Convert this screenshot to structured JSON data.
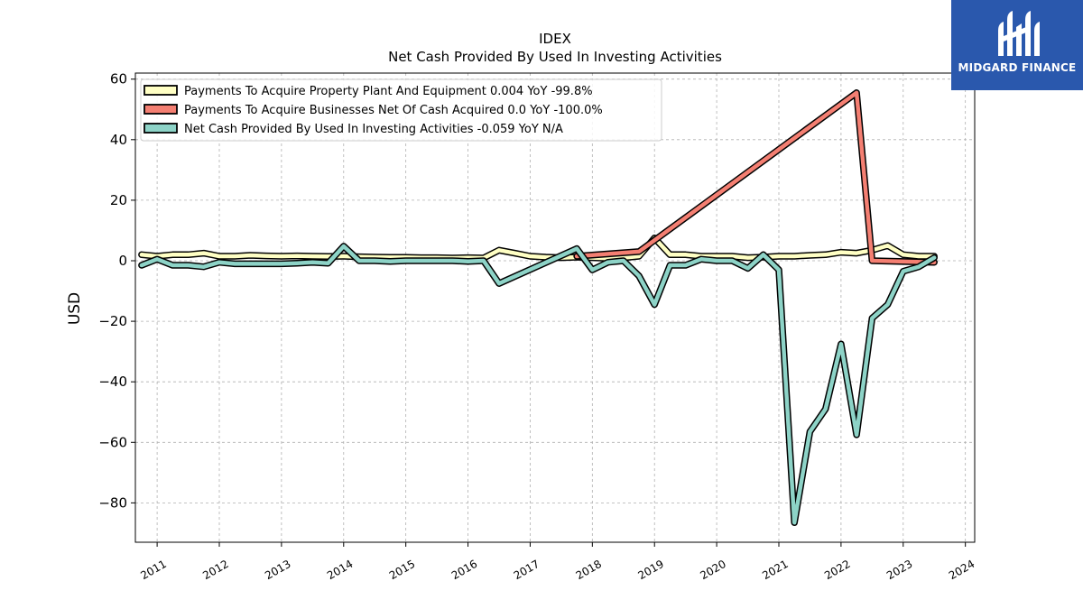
{
  "brand": {
    "name": "MIDGARD FINANCE",
    "color": "#2a58ad"
  },
  "chart_data": {
    "type": "line",
    "title": "IDEX",
    "subtitle": "Net Cash Provided By Used In Investing Activities",
    "ylabel": "USD",
    "xlabel": "",
    "xlim": [
      2010.65,
      2024.15
    ],
    "ylim": [
      -93,
      62
    ],
    "yticks": [
      60,
      40,
      20,
      0,
      -20,
      -40,
      -60,
      -80
    ],
    "xticks": [
      "2011",
      "2012",
      "2013",
      "2014",
      "2015",
      "2016",
      "2017",
      "2018",
      "2019",
      "2020",
      "2021",
      "2022",
      "2023",
      "2024"
    ],
    "grid": true,
    "legend_position": "top-left",
    "series": [
      {
        "name": "Payments To Acquire Property Plant And Equipment",
        "legend_label": "Payments To Acquire Property Plant And Equipment  0.004 YoY -99.8%",
        "color": "#ffffc4",
        "x": [
          2010.75,
          2011.0,
          2011.25,
          2011.5,
          2011.75,
          2012.0,
          2012.25,
          2012.5,
          2012.75,
          2013.0,
          2013.25,
          2013.5,
          2013.75,
          2014.0,
          2014.25,
          2014.5,
          2014.75,
          2015.0,
          2015.25,
          2015.5,
          2015.75,
          2016.0,
          2016.25,
          2016.5,
          2016.75,
          2017.0,
          2017.25,
          2017.5,
          2017.75,
          2018.0,
          2018.25,
          2018.5,
          2018.75,
          2019.0,
          2019.25,
          2019.5,
          2019.75,
          2020.0,
          2020.25,
          2020.5,
          2020.75,
          2021.0,
          2021.25,
          2021.5,
          2021.75,
          2022.0,
          2022.25,
          2022.5,
          2022.75,
          2023.0,
          2023.25,
          2023.5
        ],
        "values": [
          2.0,
          1.5,
          2.0,
          2.0,
          2.5,
          1.5,
          1.5,
          1.8,
          1.6,
          1.5,
          1.6,
          1.5,
          1.4,
          1.5,
          1.3,
          1.2,
          1.1,
          1.1,
          1.0,
          1.0,
          0.9,
          1.0,
          0.9,
          3.5,
          2.5,
          1.5,
          1.2,
          1.0,
          1.2,
          1.0,
          0.8,
          1.0,
          1.5,
          7.5,
          2.0,
          2.0,
          1.5,
          1.5,
          1.5,
          1.0,
          1.2,
          1.5,
          1.5,
          1.8,
          2.0,
          2.8,
          2.5,
          3.5,
          5.0,
          2.0,
          1.5,
          1.5
        ]
      },
      {
        "name": "Payments To Acquire Businesses Net Of Cash Acquired",
        "legend_label": "Payments To Acquire Businesses Net Of Cash Acquired  0.0 YoY -100.0%",
        "color": "#f47f72",
        "x": [
          2017.75,
          2018.75,
          2022.25,
          2022.5,
          2023.5
        ],
        "values": [
          1.5,
          3.0,
          55.5,
          0.0,
          -0.5
        ]
      },
      {
        "name": "Net Cash Provided By Used In Investing Activities",
        "legend_label": "Net Cash Provided By Used In Investing Activities  -0.059 YoY N/A",
        "color": "#8dd3c7",
        "x": [
          2010.75,
          2011.0,
          2011.25,
          2011.5,
          2011.75,
          2012.0,
          2012.25,
          2012.5,
          2012.75,
          2013.0,
          2013.25,
          2013.5,
          2013.75,
          2014.0,
          2014.25,
          2014.5,
          2014.75,
          2015.0,
          2015.25,
          2015.5,
          2015.75,
          2016.0,
          2016.25,
          2016.5,
          2017.75,
          2018.0,
          2018.25,
          2018.5,
          2018.75,
          2019.0,
          2019.25,
          2019.5,
          2019.75,
          2020.0,
          2020.25,
          2020.5,
          2020.75,
          2021.0,
          2021.25,
          2021.5,
          2021.75,
          2022.0,
          2022.25,
          2022.5,
          2022.75,
          2023.0,
          2023.25,
          2023.5
        ],
        "values": [
          -1.5,
          0.5,
          -1.5,
          -1.5,
          -2.0,
          -0.5,
          -1.0,
          -1.0,
          -1.0,
          -1.0,
          -0.8,
          -0.5,
          -0.8,
          4.8,
          0.0,
          0.0,
          -0.2,
          0.0,
          0.0,
          0.0,
          0.0,
          -0.2,
          0.0,
          -7.5,
          4.0,
          -3.0,
          -0.5,
          0.0,
          -5.0,
          -14.5,
          -1.5,
          -1.5,
          0.5,
          0.0,
          0.0,
          -2.5,
          2.0,
          -3.0,
          -86.5,
          -56.5,
          -49.0,
          -27.5,
          -57.5,
          -19.0,
          -14.5,
          -3.5,
          -2.0,
          1.0
        ]
      }
    ]
  }
}
